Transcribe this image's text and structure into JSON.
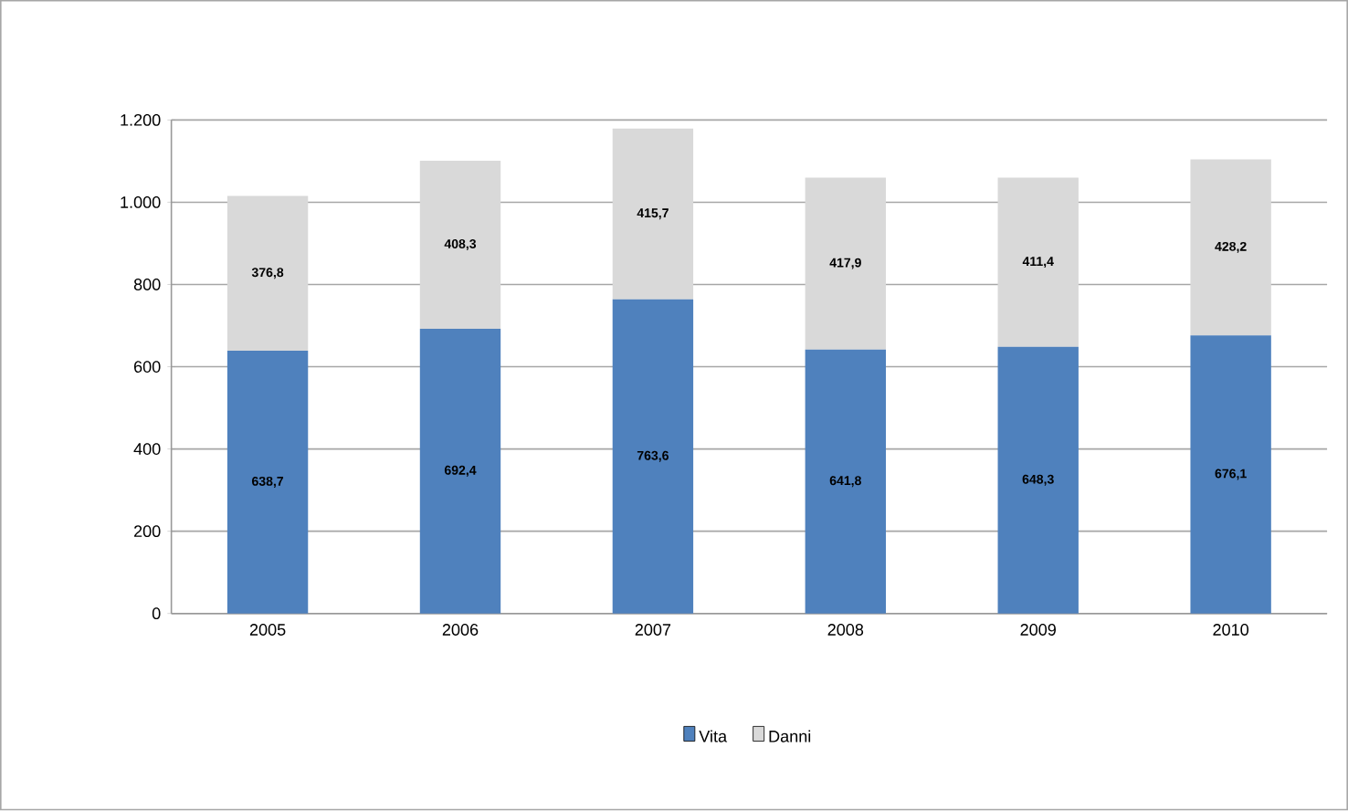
{
  "chart_data": {
    "type": "bar",
    "stacked": true,
    "categories": [
      "2005",
      "2006",
      "2007",
      "2008",
      "2009",
      "2010"
    ],
    "series": [
      {
        "name": "Vita",
        "color": "#4f81bd",
        "values": [
          638.7,
          692.4,
          763.6,
          641.8,
          648.3,
          676.1
        ],
        "value_labels": [
          "638,7",
          "692,4",
          "763,6",
          "641,8",
          "648,3",
          "676,1"
        ]
      },
      {
        "name": "Danni",
        "color": "#d9d9d9",
        "values": [
          376.8,
          408.3,
          415.7,
          417.9,
          411.4,
          428.2
        ],
        "value_labels": [
          "376,8",
          "408,3",
          "415,7",
          "417,9",
          "411,4",
          "428,2"
        ]
      }
    ],
    "ylim": [
      0,
      1200
    ],
    "yticks": [
      0,
      200,
      400,
      600,
      800,
      {
        "value": 1000,
        "label": "1.000"
      },
      {
        "value": 1200,
        "label": "1.200"
      }
    ],
    "grid": "y",
    "legend": "bottom"
  }
}
